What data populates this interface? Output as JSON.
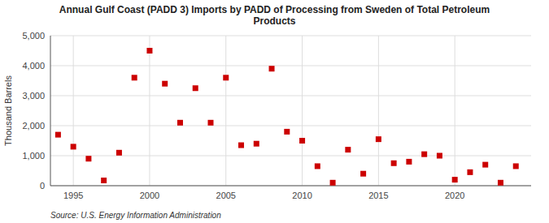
{
  "chart_data": {
    "type": "scatter",
    "title": "Annual Gulf Coast (PADD 3) Imports by PADD of Processing from Sweden of Total Petroleum\nProducts",
    "ylabel": "Thousand Barrels",
    "source": "Source: U.S. Energy Information Administration",
    "color": "#cc0000",
    "marker": "square",
    "grid": true,
    "xlim": [
      1993.5,
      2025
    ],
    "ylim": [
      0,
      5000
    ],
    "xticks": [
      1995,
      2000,
      2005,
      2010,
      2015,
      2020
    ],
    "yticks": [
      0,
      {
        "value": 1000,
        "label": "1,000"
      },
      {
        "value": 2000,
        "label": "2,000"
      },
      {
        "value": 3000,
        "label": "3,000"
      },
      {
        "value": 4000,
        "label": "4,000"
      },
      {
        "value": 5000,
        "label": "5,000"
      }
    ],
    "x": [
      1994,
      1995,
      1996,
      1997,
      1998,
      1999,
      2000,
      2001,
      2002,
      2003,
      2004,
      2005,
      2006,
      2007,
      2008,
      2009,
      2010,
      2011,
      2012,
      2013,
      2014,
      2015,
      2016,
      2017,
      2018,
      2019,
      2020,
      2021,
      2022,
      2023,
      2024
    ],
    "values": [
      1700,
      1300,
      900,
      175,
      1100,
      3600,
      4500,
      3400,
      2100,
      3250,
      2100,
      3600,
      1350,
      1400,
      3900,
      1800,
      1500,
      650,
      100,
      1200,
      400,
      1550,
      750,
      800,
      1050,
      1000,
      200,
      450,
      700,
      100,
      650
    ]
  }
}
